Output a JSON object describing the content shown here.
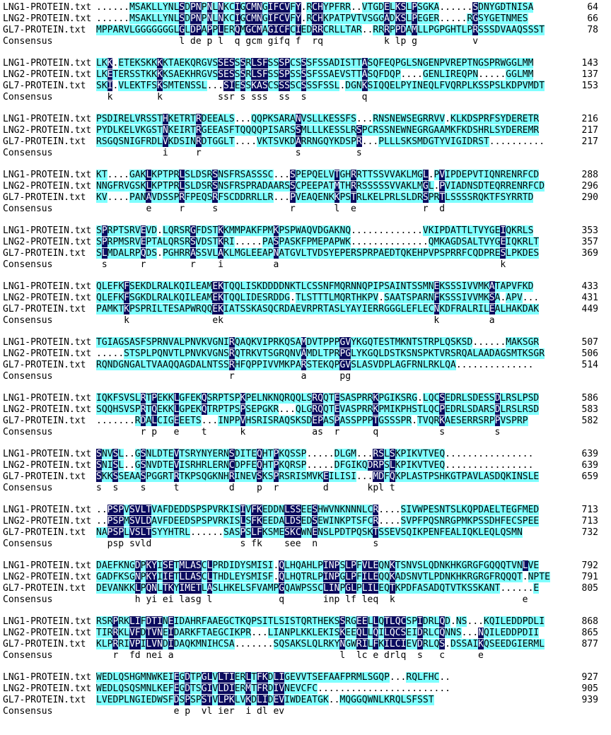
{
  "alignment": {
    "consensus_label": "Consensus",
    "colors": {
      "similar_bg": "#7FFFFF",
      "conserved_bg": "#0B0B5E",
      "conserved_text": "#FFFFFF",
      "text": "#000000",
      "page_bg": "#FFFFFF"
    },
    "blocks": [
      {
        "rows": [
          {
            "name": "LNG1-PROTEIN.txt",
            "seq": "......MSAKLLYNLSDPNPNLNKCIGCMNGIFCVFY.RCHYPFRR..VTGDELKSLPSGKA......SDNYGDTNISA",
            "num": "64"
          },
          {
            "name": "LNG2-PROTEIN.txt",
            "seq": "......MSAKLLYNLSDPNPNLNKCIGCMNGIFCVFY.RCHKPATPVTVSGGADKSLPEGER.....RGSYGETNMES",
            "num": "66"
          },
          {
            "name": "GL7-PROTEIN.txt",
            "seq": "MPPARVLGGGGGGGLGLDPAPPLERQMGCMAGICFCIEDRRCRLLTAR..RRRPPDAMLLPGPGHTLPRSSSDVAAQSSST",
            "num": "78"
          }
        ],
        "consensus": "               l de p l  q gcm gifq f  rq           k lp g          v"
      },
      {
        "rows": [
          {
            "name": "LNG1-PROTEIN.txt",
            "seq": "LKK.ETEKSKKKKTAEKQRGVSSESSSRLSFSSSPCSSSFSSADISTTASQFEQPGLSNGENPVREPTNGSPRWGGLMM",
            "num": "143"
          },
          {
            "name": "LNG2-PROTEIN.txt",
            "seq": "LKETERSSTKKKKSAEKHRGVSSESSSRLSFSSSPSSSSFSSAEVSTTASQFDQP....GENLIREQPN.....GGLMM",
            "num": "137"
          },
          {
            "name": "GL7-PROTEIN.txt",
            "seq": "SKI.VLEKTFSKSMTENSSL...SIESSKASCSSSSCSSSFSSL.DGNKSIQQELPYINEQLFVQRPLKSSPSLKDPVMDT",
            "num": "153"
          }
        ],
        "consensus": "  k        k          ssr s sss  ss  s          q"
      },
      {
        "rows": [
          {
            "name": "LNG1-PROTEIN.txt",
            "seq": "PSDIRELVRSSTHKETRTRDEEALS...QQPKSARANVSLLKESSFS...RNSNEWSEGRRVV.KLKDSPRFSYDERETR",
            "num": "216"
          },
          {
            "name": "LNG2-PROTEIN.txt",
            "seq": "PYDLKELVKGSTNKEIRTRGEEASFTQQQQPISARSSMLLLKESSLRSPCRSSNEWNEGRGAAMKFKDSHRLSYDEREMR",
            "num": "217"
          },
          {
            "name": "GL7-PROTEIN.txt",
            "seq": "RSGQSNIGFRDLVKDSINRDTGGLT....VKTSVKDARRNGQYKDSPR...PLLLSKSMDGTYVIGIDRST..........",
            "num": "217"
          }
        ],
        "consensus": "            i     r                 s          s"
      },
      {
        "rows": [
          {
            "name": "LNG1-PROTEIN.txt",
            "seq": "KT....GAKLKPTPRLSLDSRSNSFRSASSSC...SPEPQELVTGHRRTTSSVVAKLMGL.PVIPDEPVTIQNRENRFCD",
            "num": "288"
          },
          {
            "name": "LNG2-PROTEIN.txt",
            "seq": "NNGFRVGSKLKPTPRLSLDSRSNSFRSPRADAARSSCPEEPATMTHRRSSSSSVVAKLMGL.PVIADNSDTEQRRENRFCD",
            "num": "296"
          },
          {
            "name": "GL7-PROTEIN.txt",
            "seq": "KV....PANAVDSSPRFPEQSRFSCDDRRLLR...PVEAQENKKPSTRLKELPRLSLDRSPRTLSSSSRQKTFSYRRTD",
            "num": "290"
          }
        ],
        "consensus": "         e     r     s             r       l  e            r  d"
      },
      {
        "rows": [
          {
            "name": "LNG1-PROTEIN.txt",
            "seq": "SPRPTSRVEVD.LQRSRGFDSTKKMMPAKFPMKPSPWAQVDGAKNQ.............VKIPDATTLTVYGEIQKRLS",
            "num": "353"
          },
          {
            "name": "LNG2-PROTEIN.txt",
            "seq": "SPRPMSRVEPTALQRSRSVDSTKRI.....PASPASKFPMEPAPWK..............QMKAGDSALTVYGEIQKRLT",
            "num": "357"
          },
          {
            "name": "GL7-PROTEIN.txt",
            "seq": "SLMDALRPQDS.PGHRRASSVLAKLMGLEEAPNATGVLTVDSYEPERSPRPAEDTQKEHPVPSPRRFCQDPRESLPKDES",
            "num": "369"
          }
        ],
        "consensus": " s      r        r    i         a                                        k"
      },
      {
        "rows": [
          {
            "name": "LNG1-PROTEIN.txt",
            "seq": "QLEFKFSEKDLRALKQILEAMEKTQQLISKDDDDNKTLCSSNFMQRNNQPIPSAINTSSMNEKSSSIVVMKATAPVFKD",
            "num": "433"
          },
          {
            "name": "LNG2-PROTEIN.txt",
            "seq": "QLEFKFSGKDLRALKQILEAMEKTQQLIDESRDDG.TLSTTTLMQRTHKPV.SAATSPARNFKSSSIVVMKSA.APV...",
            "num": "431"
          },
          {
            "name": "GL7-PROTEIN.txt",
            "seq": "PAMKTKPSPRILTESAPWRQQEKIATSSKASQCRDAEVRPRTASLYAYIERRGGGLEFLECNKDFRALRILEALHAKDAK",
            "num": "449"
          }
        ],
        "consensus": "     k               ek                                      k         a"
      },
      {
        "rows": [
          {
            "name": "LNG1-PROTEIN.txt",
            "seq": "TGIAGSASFSPRNVALPNVKVGNIRQAQKVIPRKQSAMDVTPPPGVYKGQTESTMKNTSTRPLQSKSD......MAKSGR",
            "num": "507"
          },
          {
            "name": "LNG2-PROTEIN.txt",
            "seq": ".....STSPLPQNVTLPNVKVGNSRQTRKVTSGRQNVAMDLTPRPGLYKGQLDSTKSNSPKTVRSRQALAADAGSMTKSGR",
            "num": "506"
          },
          {
            "name": "GL7-PROTEIN.txt",
            "seq": "RQNDGNGALTVAAQQAGDALNTSSRHFQPPIVVMKPARSTEKQPGVSLASVDPLAGFRNLRKLQA..............",
            "num": "514"
          }
        ],
        "consensus": "                        r            a      pg"
      },
      {
        "rows": [
          {
            "name": "LNG1-PROTEIN.txt",
            "seq": "IQKFSVSLRTPEKKLGFEKQSRPTSPKPELNKNQRQQLSRQQTESASPRRKPGIKSRG.LQCSEDRLSDESSDLRSLPSD",
            "num": "586"
          },
          {
            "name": "LNG2-PROTEIN.txt",
            "seq": "SQQHSVSPRTQEKKLGPEKQTRPTPSPSEPGKR...QLGRQQTEVASPRRKPMIKPHSTLQCPEDRLSDARSDLRSLRSD",
            "num": "583"
          },
          {
            "name": "GL7-PROTEIN.txt",
            "seq": ".......RDALCIGEEETS...INPPVHSRISRAQSKSDEPASPASSPPPTGSSSPR.TVQRKAESERRSRPPVSPRP",
            "num": "582"
          }
        ],
        "consensus": "        r p   e    t      k            as  r      q           s         s"
      },
      {
        "rows": [
          {
            "name": "LNG1-PROTEIN.txt",
            "seq": "SNVSL..GSNLDTEVTSRYNYERNSDITEQHTPKQSSP.....DLGM...RSLSKPIKVTVEQ................",
            "num": "639"
          },
          {
            "name": "LNG2-PROTEIN.txt",
            "seq": "SNISL..GSNVDTEVISRHRLERNCDPFEQHTPKQRSP.....DFGIKQDRPSLKPIKVTVEQ................",
            "num": "639"
          },
          {
            "name": "GL7-PROTEIN.txt",
            "seq": "SKKSSEAASPGGRTRTKPSQGKNHRINEVSKSPRSRISMVKEILISI...MDFQKPLASTPSHKGTPAVLASDQKINSLE",
            "num": "659"
          }
        ],
        "consensus": "s  s    s     t         d    p  r        d       kpl t"
      },
      {
        "rows": [
          {
            "name": "LNG1-PROTEIN.txt",
            "seq": "..PSPVSVLTVAFDEDDSPSPVRKISIVFKEDDNLSSEESHWVNKNNNLCR....SIVWPESNTSLKQPDAELTEGFMED",
            "num": "713"
          },
          {
            "name": "LNG2-PROTEIN.txt",
            "seq": "..PSPMSVLDAVFDEEDSPSPVRKISLSFKEEDALDSEDSEWINKPTSFCR....SVPFPQSNRGPMKPSSDHFECSPEE",
            "num": "713"
          },
          {
            "name": "GL7-PROTEIN.txt",
            "seq": "NAPSPLVSLTSYYHTRL......SASPSLFKSMESKCWNENSLPDTPQSKTSSEVSQIKPENFEALIQKLEQLQSMN",
            "num": "732"
          }
        ],
        "consensus": "  psp svld                s fk    see  n          s"
      },
      {
        "rows": [
          {
            "name": "LNG1-PROTEIN.txt",
            "seq": "DAEFKNGDPKYISETMLASCLPRDIDYSMISI.QLHQAHLPINPSLPFVLEQNKTSNVSLQDNKHKGRGFGQQQTVNLVE",
            "num": "792"
          },
          {
            "name": "LNG2-PROTEIN.txt",
            "seq": "GADFKSGNPKYIIETLLASCLTHDLEYSMISF.QLHQTRLPINPGLPFILEQQKADSNVTLPDNKHKRGRGFRQQQT.NPTE",
            "num": "791"
          },
          {
            "name": "GL7-PROTEIN.txt",
            "seq": "DEVANKKLPQNLTKYIMETLASLHKELSFVAMPGQAWPSSCLINPGLPLILEQTKPDFASADQTVTKSSKANT......E",
            "num": "805"
          }
        ],
        "consensus": "       h yi ei lasg l            q       inp lf leq  k                       e"
      },
      {
        "rows": [
          {
            "name": "LNG1-PROTEIN.txt",
            "seq": "RSRPRKLIFDTINEIDAHRFAAEGCTKQPSITLSISTQRTHEKSSRGEELLQTLQCSPIDRLQD.NS...KQILEDDPDLI",
            "num": "868"
          },
          {
            "name": "LNG2-PROTEIN.txt",
            "seq": "TIRRKLVFDTVNEIDARKFTAEGCIKPR...LIANPLKKLEKISKEEQLLQILQCSEIDRLCQNNS...NQILEDDPDII",
            "num": "865"
          },
          {
            "name": "GL7-PROTEIN.txt",
            "seq": "KLPRRIVPILVNDIDAQKMNIHCSA.......SQSAKSLQLRKYNGWRILFKILCIEVDRLQS.DSSAIKQSEEDGIERML",
            "num": "877"
          }
        ],
        "consensus": "   r  fd nei a                              l  lc e drlq  s   c      e"
      },
      {
        "rows": [
          {
            "name": "LNG1-PROTEIN.txt",
            "seq": "WEDLQSHGMNWKEIEGDTPGLVLTIERLTFKDLIGEVVTSEFAAFPRMLSGQP...RQLFHC..",
            "num": "927"
          },
          {
            "name": "LNG2-PROTEIN.txt",
            "seq": "WEDLQSQSMNLKEFEGDTSGIVLDIERMTFRDIVNEVCFC........................",
            "num": "905"
          },
          {
            "name": "GL7-PROTEIN.txt",
            "seq": "LVEDPLNGIEDWSFDSPSPSTVLPKLVKDLIDEVIWDEATGK..MQGGQWNLKRQLSFSST",
            "num": "939"
          }
        ],
        "consensus": "              e p  vl ier  i dl ev"
      }
    ]
  }
}
